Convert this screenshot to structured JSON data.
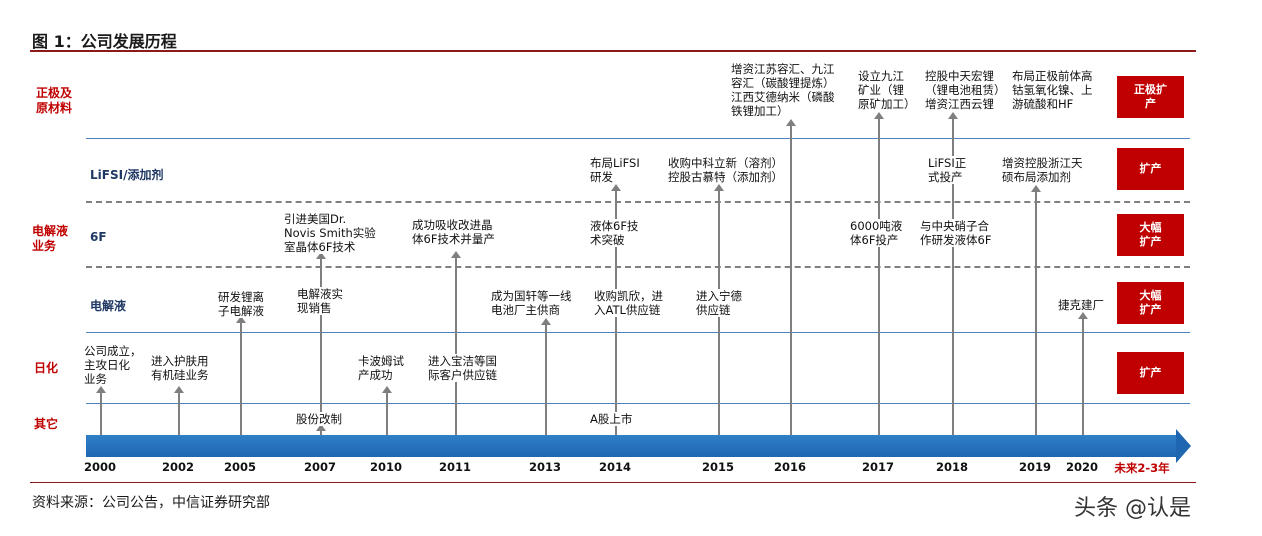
{
  "title": "图 1：公司发展历程",
  "source": "资料来源：公司公告，中信证券研究部",
  "watermark": "头条 @认是",
  "sections": {
    "cathode": "正极及\n原材料",
    "electrolyte": "电解液\n业务",
    "daily": "日化",
    "other": "其它"
  },
  "sublabels": {
    "lifsi": "LiFSI/添加剂",
    "f6": "6F",
    "electrolyte": "电解液"
  },
  "badges": [
    "正极扩\n产",
    "扩产",
    "大幅\n扩产",
    "大幅\n扩产",
    "扩产"
  ],
  "years": [
    "2000",
    "2002",
    "2005",
    "2007",
    "2010",
    "2011",
    "2013",
    "2014",
    "2015",
    "2016",
    "2017",
    "2018",
    "2019",
    "2020",
    "未来2-3年"
  ],
  "events": [
    "公司成立，\n主攻日化\n业务",
    "进入护肤用\n有机硅业务",
    "研发锂离\n子电解液",
    "引进美国Dr.\nNovis Smith实验\n室晶体6F技术",
    "电解液实\n现销售",
    "股份改制",
    "卡波姆试\n产成功",
    "成功吸收改进晶\n体6F技术并量产",
    "进入宝洁等国\n际客户供应链",
    "成为国轩等一线\n电池厂主供商",
    "布局LiFSI\n研发",
    "液体6F技\n术突破",
    "收购凯欣，进\n入ATL供应链",
    "A股上市",
    "收购中科立新（溶剂）\n控股古慕特（添加剂）",
    "进入宁德\n供应链",
    "增资江苏容汇、九江\n容汇（碳酸锂提炼）\n江西艾德纳米（磷酸\n铁锂加工）",
    "设立九江\n矿业（锂\n原矿加工）",
    "6000吨液\n体6F投产",
    "控股中天宏锂\n（锂电池租赁）\n增资江西云锂",
    "LiFSI正\n式投产",
    "与中央硝子合\n作研发液体6F",
    "布局正极前体高\n钴氢氧化镍、上\n游硫酸和HF",
    "增资控股浙江天\n硕布局添加剂",
    "捷克建厂"
  ]
}
